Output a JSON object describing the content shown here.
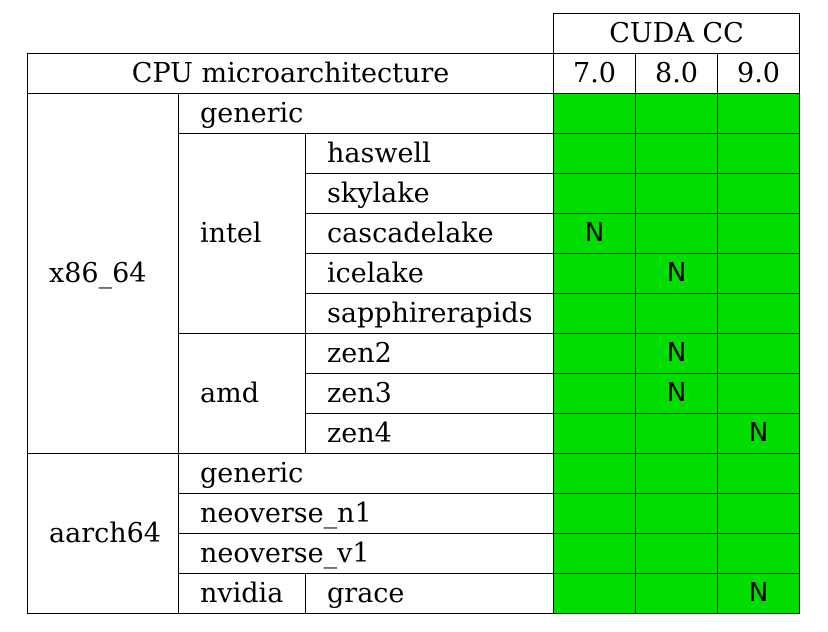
{
  "header": {
    "cuda_cc": "CUDA CC",
    "cpu_microarchitecture": "CPU microarchitecture",
    "cc_versions": [
      "7.0",
      "8.0",
      "9.0"
    ]
  },
  "x86_64": {
    "arch": "x86_64",
    "generic": "generic",
    "intel": {
      "vendor": "intel",
      "rows": [
        {
          "name": "haswell",
          "cc70": "",
          "cc80": "",
          "cc90": ""
        },
        {
          "name": "skylake",
          "cc70": "",
          "cc80": "",
          "cc90": ""
        },
        {
          "name": "cascadelake",
          "cc70": "N",
          "cc80": "",
          "cc90": ""
        },
        {
          "name": "icelake",
          "cc70": "",
          "cc80": "N",
          "cc90": ""
        },
        {
          "name": "sapphirerapids",
          "cc70": "",
          "cc80": "",
          "cc90": ""
        }
      ]
    },
    "amd": {
      "vendor": "amd",
      "rows": [
        {
          "name": "zen2",
          "cc70": "",
          "cc80": "N",
          "cc90": ""
        },
        {
          "name": "zen3",
          "cc70": "",
          "cc80": "N",
          "cc90": ""
        },
        {
          "name": "zen4",
          "cc70": "",
          "cc80": "",
          "cc90": "N"
        }
      ]
    },
    "generic_cells": {
      "cc70": "",
      "cc80": "",
      "cc90": ""
    }
  },
  "aarch64": {
    "arch": "aarch64",
    "rows": [
      {
        "name": "generic",
        "cc70": "",
        "cc80": "",
        "cc90": ""
      },
      {
        "name": "neoverse_n1",
        "cc70": "",
        "cc80": "",
        "cc90": ""
      },
      {
        "name": "neoverse_v1",
        "cc70": "",
        "cc80": "",
        "cc90": ""
      }
    ],
    "nvidia": {
      "vendor": "nvidia",
      "name": "grace",
      "cc70": "",
      "cc80": "",
      "cc90": "N"
    }
  },
  "colors": {
    "supported": "#00dd00",
    "border": "#000000"
  }
}
